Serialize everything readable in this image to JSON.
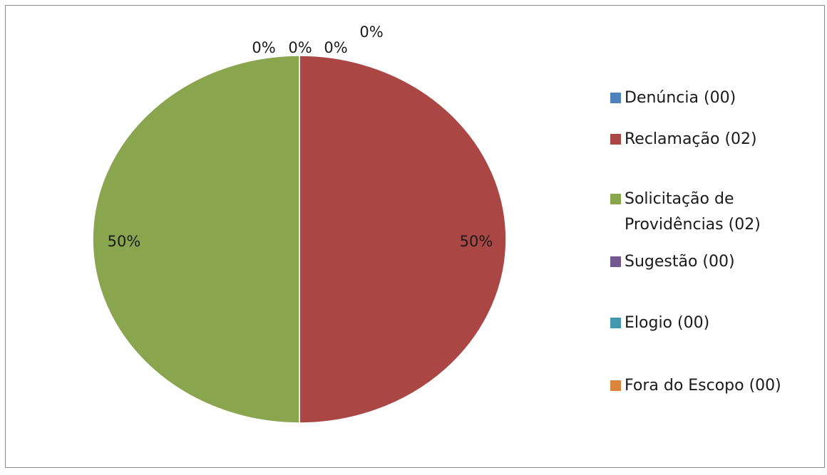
{
  "chart_data": {
    "type": "pie",
    "slices": [
      {
        "label": "Denúncia (00)",
        "value": 0,
        "percent_label": "0%",
        "color": "#4F81BD"
      },
      {
        "label": "Reclamação (02)",
        "value": 2,
        "percent_label": "50%",
        "color": "#AA4643"
      },
      {
        "label": "Solicitação de Providências (02)",
        "value": 2,
        "percent_label": "50%",
        "color": "#89A54E"
      },
      {
        "label": "Sugestão (00)",
        "value": 0,
        "percent_label": "0%",
        "color": "#71588F"
      },
      {
        "label": "Elogio (00)",
        "value": 0,
        "percent_label": "0%",
        "color": "#4198AF"
      },
      {
        "label": "Fora do Escopo (00)",
        "value": 0,
        "percent_label": "0%",
        "color": "#DB843D"
      }
    ],
    "legend_position": "right",
    "start_angle": "top, clockwise"
  }
}
